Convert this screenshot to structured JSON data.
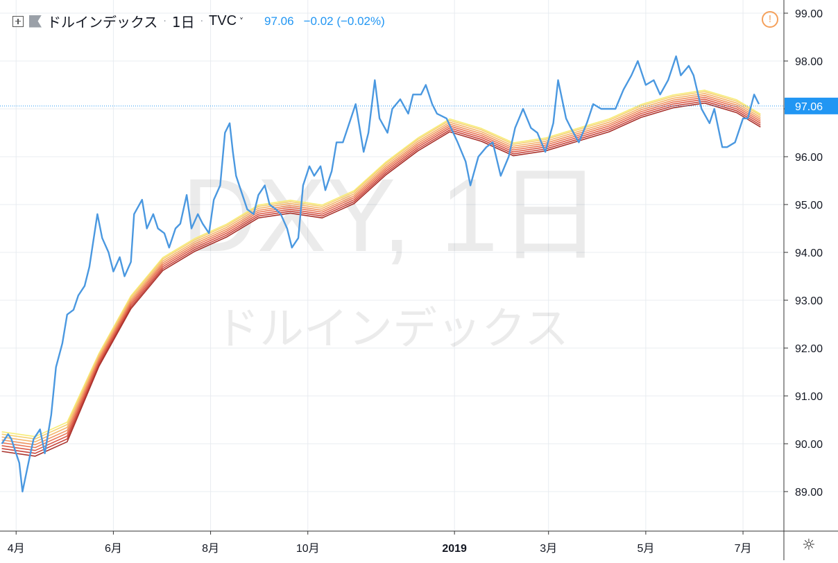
{
  "legend": {
    "symbol_name": "ドルインデックス",
    "interval": "1日",
    "exchange": "TVC",
    "last": "97.06",
    "change": "−0.02 (−0.02%)"
  },
  "watermark": {
    "line1": "DXY, 1日",
    "line2": "ドルインデックス"
  },
  "price_label": "97.06",
  "colors": {
    "price_line": "#4a98e0",
    "ribbon": [
      "#f7ec77",
      "#f6d073",
      "#f4b36b",
      "#f09460",
      "#e97655",
      "#db5a47",
      "#c8433a",
      "#a8312b"
    ],
    "grid": "#e8ecf0",
    "last_price_tag": "#2196f3",
    "axis_text": "#131722"
  },
  "chart_data": {
    "type": "line",
    "title": "DXY, 1日",
    "subtitle": "ドルインデックス",
    "y_ticks": [
      "89.00",
      "90.00",
      "91.00",
      "92.00",
      "93.00",
      "94.00",
      "95.00",
      "96.00",
      "97.00",
      "98.00",
      "99.00"
    ],
    "x_ticks": [
      "4月",
      "6月",
      "8月",
      "10月",
      "2019",
      "3月",
      "5月",
      "7月"
    ],
    "ylim": [
      88.2,
      99.3
    ],
    "grid": true,
    "series_price": {
      "name": "DXY",
      "x": [
        "2018-03-23",
        "2018-03-27",
        "2018-03-29",
        "2018-04-03",
        "2018-04-05",
        "2018-04-10",
        "2018-04-12",
        "2018-04-16",
        "2018-04-19",
        "2018-04-23",
        "2018-04-26",
        "2018-04-30",
        "2018-05-03",
        "2018-05-07",
        "2018-05-10",
        "2018-05-14",
        "2018-05-17",
        "2018-05-22",
        "2018-05-25",
        "2018-05-29",
        "2018-06-01",
        "2018-06-05",
        "2018-06-08",
        "2018-06-12",
        "2018-06-14",
        "2018-06-19",
        "2018-06-22",
        "2018-06-26",
        "2018-06-29",
        "2018-07-03",
        "2018-07-06",
        "2018-07-10",
        "2018-07-13",
        "2018-07-17",
        "2018-07-20",
        "2018-07-24",
        "2018-07-27",
        "2018-07-31",
        "2018-08-03",
        "2018-08-07",
        "2018-08-10",
        "2018-08-13",
        "2018-08-15",
        "2018-08-17",
        "2018-08-21",
        "2018-08-24",
        "2018-08-28",
        "2018-08-31",
        "2018-09-04",
        "2018-09-07",
        "2018-09-11",
        "2018-09-14",
        "2018-09-18",
        "2018-09-21",
        "2018-09-25",
        "2018-09-28",
        "2018-10-02",
        "2018-10-05",
        "2018-10-09",
        "2018-10-12",
        "2018-10-16",
        "2018-10-19",
        "2018-10-23",
        "2018-10-26",
        "2018-10-31",
        "2018-11-05",
        "2018-11-08",
        "2018-11-12",
        "2018-11-15",
        "2018-11-20",
        "2018-11-23",
        "2018-11-28",
        "2018-12-03",
        "2018-12-06",
        "2018-12-11",
        "2018-12-14",
        "2018-12-18",
        "2018-12-21",
        "2018-12-27",
        "2019-01-03",
        "2019-01-08",
        "2019-01-11",
        "2019-01-16",
        "2019-01-21",
        "2019-01-25",
        "2019-01-30",
        "2019-02-04",
        "2019-02-08",
        "2019-02-13",
        "2019-02-18",
        "2019-02-22",
        "2019-02-27",
        "2019-03-04",
        "2019-03-07",
        "2019-03-12",
        "2019-03-15",
        "2019-03-20",
        "2019-03-25",
        "2019-03-29",
        "2019-04-03",
        "2019-04-08",
        "2019-04-12",
        "2019-04-17",
        "2019-04-22",
        "2019-04-26",
        "2019-05-01",
        "2019-05-06",
        "2019-05-10",
        "2019-05-15",
        "2019-05-20",
        "2019-05-23",
        "2019-05-28",
        "2019-05-31",
        "2019-06-05",
        "2019-06-10",
        "2019-06-13",
        "2019-06-18",
        "2019-06-21",
        "2019-06-26",
        "2019-07-01",
        "2019-07-04",
        "2019-07-08",
        "2019-07-11"
      ],
      "values": [
        90.0,
        90.2,
        90.1,
        89.6,
        89.0,
        89.8,
        90.1,
        90.3,
        89.8,
        90.6,
        91.6,
        92.1,
        92.7,
        92.8,
        93.1,
        93.3,
        93.7,
        94.8,
        94.3,
        94.0,
        93.6,
        93.9,
        93.5,
        93.8,
        94.8,
        95.1,
        94.5,
        94.8,
        94.5,
        94.4,
        94.1,
        94.5,
        94.6,
        95.2,
        94.5,
        94.8,
        94.6,
        94.4,
        95.1,
        95.4,
        96.5,
        96.7,
        96.1,
        95.6,
        95.2,
        94.9,
        94.8,
        95.2,
        95.4,
        95.0,
        94.9,
        94.8,
        94.5,
        94.1,
        94.3,
        95.4,
        95.8,
        95.6,
        95.8,
        95.3,
        95.7,
        96.3,
        96.3,
        96.6,
        97.1,
        96.1,
        96.5,
        97.6,
        96.8,
        96.5,
        97.0,
        97.2,
        96.9,
        97.3,
        97.3,
        97.5,
        97.1,
        96.9,
        96.8,
        96.3,
        95.9,
        95.4,
        96.0,
        96.2,
        96.3,
        95.6,
        96.0,
        96.6,
        97.0,
        96.6,
        96.5,
        96.1,
        96.7,
        97.6,
        96.8,
        96.6,
        96.3,
        96.7,
        97.1,
        97.0,
        97.0,
        97.0,
        97.4,
        97.7,
        98.0,
        97.5,
        97.6,
        97.3,
        97.6,
        98.1,
        97.7,
        97.9,
        97.7,
        97.0,
        96.7,
        97.0,
        96.2,
        96.2,
        96.3,
        96.8,
        96.8,
        97.3,
        97.1
      ]
    },
    "series_ma": {
      "name": "Guppy ribbon",
      "x": [
        "2018-03-23",
        "2018-04-13",
        "2018-05-03",
        "2018-05-23",
        "2018-06-12",
        "2018-07-02",
        "2018-07-22",
        "2018-08-11",
        "2018-08-31",
        "2018-09-20",
        "2018-10-10",
        "2018-10-30",
        "2018-11-19",
        "2018-12-09",
        "2018-12-29",
        "2019-01-18",
        "2019-02-07",
        "2019-02-27",
        "2019-03-19",
        "2019-04-08",
        "2019-04-28",
        "2019-05-18",
        "2019-06-07",
        "2019-06-27",
        "2019-07-12"
      ],
      "values": [
        90.2,
        90.1,
        90.4,
        91.9,
        93.1,
        93.9,
        94.3,
        94.6,
        95.0,
        95.1,
        95.0,
        95.3,
        95.9,
        96.4,
        96.8,
        96.6,
        96.3,
        96.4,
        96.6,
        96.8,
        97.1,
        97.3,
        97.4,
        97.2,
        96.9
      ]
    },
    "legend": "none"
  }
}
